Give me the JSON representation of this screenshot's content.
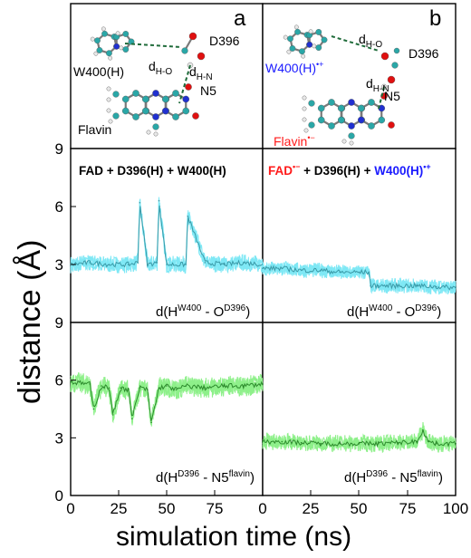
{
  "figure": {
    "ylabel": "distance (Å)",
    "xlabel": "simulation time (ns)",
    "x_ticks": [
      "0",
      "25",
      "50",
      "75",
      "0",
      "25",
      "50",
      "75",
      "100"
    ],
    "y_ticks_top": [
      "9",
      "6",
      "3"
    ],
    "y_ticks_bottom": [
      "9",
      "6",
      "3",
      "0"
    ]
  },
  "panel_a": {
    "letter": "a",
    "labels": {
      "w400": "W400(H)",
      "d396": "D396",
      "dho": "d",
      "dho_sub": "H-O",
      "dhn": "d",
      "dhn_sub": "H-N",
      "n5": "N5",
      "flavin": "Flavin"
    }
  },
  "panel_b": {
    "letter": "b",
    "labels": {
      "w400": "W400(H)",
      "w400_sup": "•+",
      "d396": "D396",
      "dho": "d",
      "dho_sub": "H-O",
      "dhn": "d",
      "dhn_sub": "H-N",
      "n5": "N5",
      "flavin": "Flavin",
      "flavin_sup": "•−"
    }
  },
  "titles": {
    "left": "FAD + D396(H) + W400(H)",
    "right_fad": "FAD",
    "right_fad_sup": "•−",
    "right_mid": " + D396(H) + ",
    "right_w400": "W400(H)",
    "right_w400_sup": "•+"
  },
  "subplot_labels": {
    "top_d": "d(H",
    "top_sup1": "W400",
    "top_mid": " - O",
    "top_sup2": "D396",
    "top_end": ")",
    "bottom_d": "d(H",
    "bottom_sup1": "D396",
    "bottom_mid": " - N5",
    "bottom_sup2": "flavin",
    "bottom_end": ")"
  },
  "colors": {
    "cyan_band": "#7fe8f5",
    "cyan_mean": "#3a9aa8",
    "green_band": "#8ef08a",
    "green_mean": "#2c8a2c",
    "red": "#ff1a1a",
    "blue": "#1a1aff",
    "carbon": "#2aa7a7",
    "oxygen": "#e01010",
    "nitrogen": "#2030d0",
    "hydrogen": "#e8e8e8"
  },
  "chart_data": [
    {
      "type": "line",
      "name": "top-left",
      "xlim": [
        0,
        100
      ],
      "ylim": [
        0,
        9
      ],
      "x": [
        0,
        10,
        20,
        30,
        35,
        36,
        40,
        45,
        46,
        50,
        60,
        61,
        70,
        80,
        90,
        100
      ],
      "y": [
        3.0,
        3.1,
        3.0,
        3.0,
        3.1,
        6.2,
        3.0,
        3.1,
        6.3,
        3.0,
        3.0,
        5.5,
        3.1,
        3.0,
        3.1,
        3.0
      ]
    },
    {
      "type": "line",
      "name": "top-right",
      "xlim": [
        0,
        100
      ],
      "ylim": [
        0,
        9
      ],
      "x": [
        0,
        10,
        20,
        30,
        40,
        50,
        55,
        56,
        60,
        70,
        80,
        90,
        100
      ],
      "y": [
        2.8,
        2.8,
        2.7,
        2.7,
        2.6,
        2.6,
        2.6,
        1.9,
        1.9,
        1.9,
        1.9,
        1.85,
        1.8
      ]
    },
    {
      "type": "line",
      "name": "bottom-left",
      "xlim": [
        0,
        100
      ],
      "ylim": [
        0,
        9
      ],
      "x": [
        0,
        10,
        12,
        16,
        20,
        22,
        26,
        30,
        32,
        36,
        40,
        42,
        46,
        50,
        55,
        60,
        70,
        80,
        90,
        100
      ],
      "y": [
        5.9,
        5.8,
        4.5,
        5.7,
        5.6,
        4.2,
        5.6,
        5.5,
        4.0,
        5.6,
        5.5,
        3.8,
        5.6,
        5.7,
        5.5,
        5.7,
        5.6,
        5.7,
        5.7,
        5.8
      ]
    },
    {
      "type": "line",
      "name": "bottom-right",
      "xlim": [
        0,
        100
      ],
      "ylim": [
        0,
        9
      ],
      "x": [
        0,
        10,
        20,
        30,
        40,
        50,
        60,
        70,
        80,
        83,
        86,
        90,
        100
      ],
      "y": [
        2.8,
        2.8,
        2.75,
        2.7,
        2.7,
        2.7,
        2.7,
        2.75,
        2.8,
        3.4,
        2.8,
        2.7,
        2.7
      ]
    }
  ]
}
